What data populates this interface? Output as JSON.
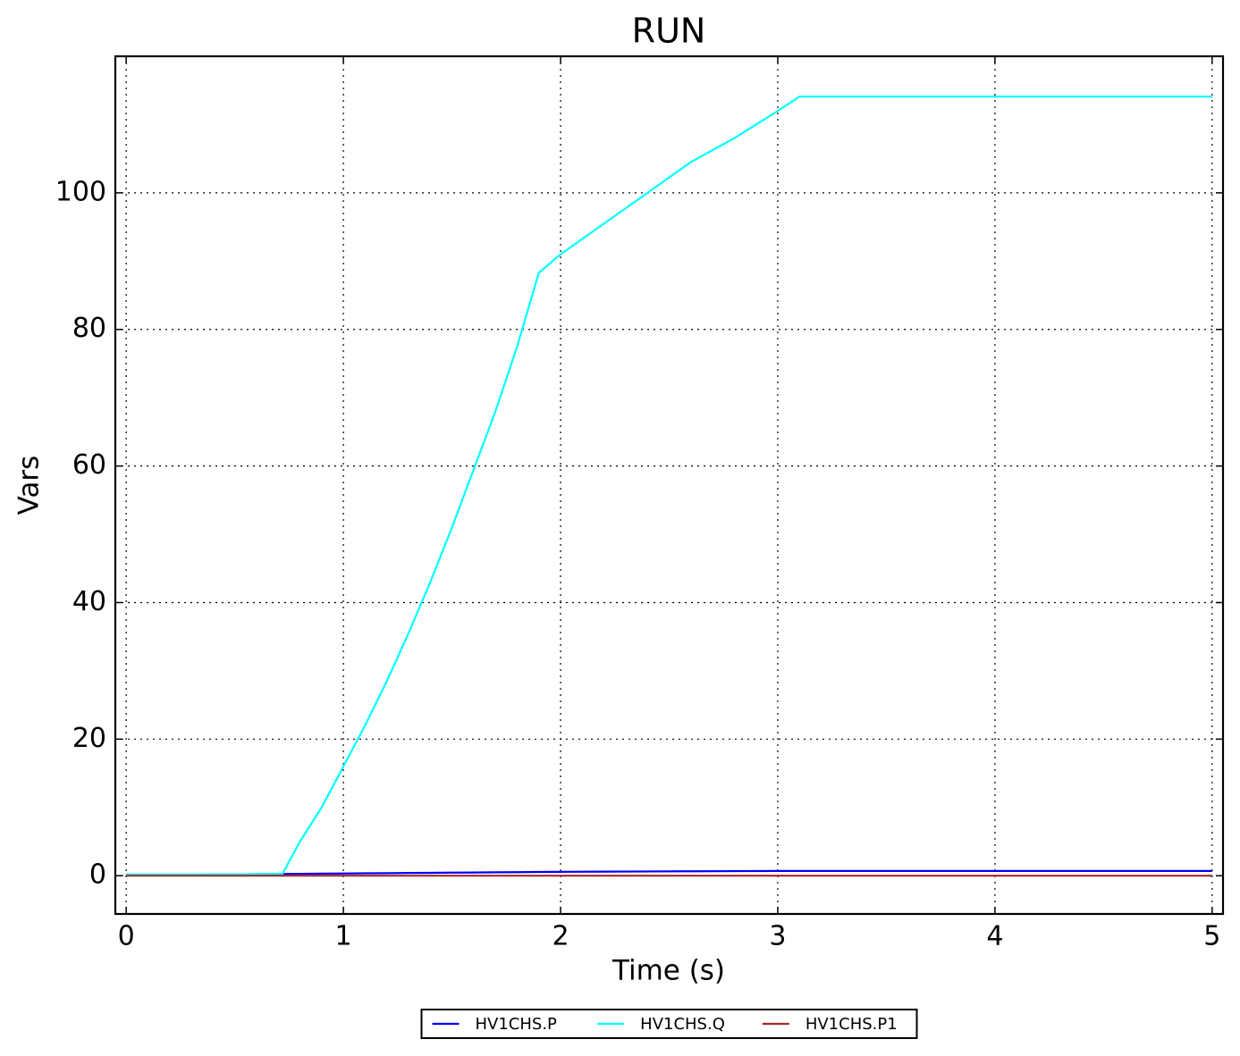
{
  "chart_data": {
    "type": "line",
    "title": "RUN",
    "x_label": "Time (s)",
    "y_label": "Vars",
    "x": [
      0,
      0.5,
      0.72,
      0.8,
      0.9,
      1.0,
      1.1,
      1.2,
      1.3,
      1.4,
      1.5,
      1.6,
      1.7,
      1.8,
      1.9,
      2.0,
      2.2,
      2.4,
      2.6,
      2.8,
      3.0,
      3.1,
      4.0,
      5.0
    ],
    "series": [
      {
        "name": "HV1CHS.P",
        "color": "#0000ff",
        "values": [
          0.1,
          0.2,
          0.25,
          0.27,
          0.3,
          0.32,
          0.35,
          0.37,
          0.4,
          0.42,
          0.45,
          0.47,
          0.5,
          0.52,
          0.55,
          0.57,
          0.6,
          0.62,
          0.65,
          0.67,
          0.7,
          0.7,
          0.7,
          0.7
        ]
      },
      {
        "name": "HV1CHS.Q",
        "color": "#00ffff",
        "values": [
          0.2,
          0.2,
          0.3,
          5,
          10,
          16,
          22,
          28.5,
          35.5,
          43,
          51,
          59.5,
          68,
          77.5,
          88.3,
          91,
          95.5,
          100,
          104.5,
          108,
          112,
          114.1,
          114.1,
          114.1
        ]
      },
      {
        "name": "HV1CHS.P1",
        "color": "#a52a2a",
        "values": [
          0,
          0,
          0,
          0,
          0,
          0,
          0,
          0,
          0,
          0,
          0,
          0,
          0,
          0,
          0,
          0,
          0,
          0,
          0,
          0,
          0,
          0,
          0,
          0
        ]
      }
    ],
    "xlim": [
      -0.05,
      5.05
    ],
    "ylim": [
      -5.6,
      120
    ],
    "xticks": [
      0,
      1,
      2,
      3,
      4,
      5
    ],
    "yticks": [
      0,
      20,
      40,
      60,
      80,
      100
    ],
    "grid": true,
    "legend": "bottom"
  }
}
